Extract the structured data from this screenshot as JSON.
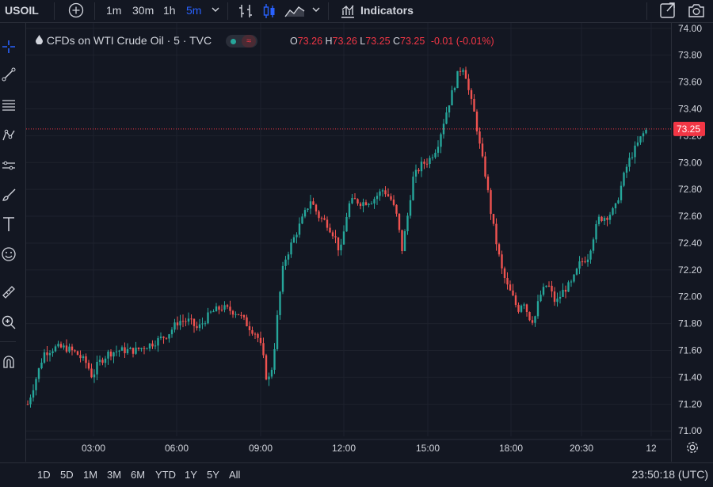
{
  "toolbar": {
    "symbol": "USOIL",
    "intervals": [
      "1m",
      "30m",
      "1h",
      "5m"
    ],
    "active_interval": "5m",
    "indicators_label": "Indicators",
    "colors": {
      "active": "#2962ff",
      "text": "#d1d4dc"
    }
  },
  "sidebar": {
    "icons": [
      "crosshair-icon",
      "trend-line-icon",
      "fib-retracement-icon",
      "pattern-icon",
      "projection-icon",
      "brush-icon",
      "text-icon",
      "emoji-icon",
      "ruler-icon",
      "zoom-in-icon",
      "magnet-icon"
    ]
  },
  "legend": {
    "title": "CFDs on WTI Crude Oil · 5 · TVC",
    "open_label": "O",
    "open": "73.26",
    "high_label": "H",
    "high": "73.26",
    "low_label": "L",
    "low": "73.25",
    "close_label": "C",
    "close": "73.25",
    "change": "-0.01 (-0.01%)"
  },
  "chart_data": {
    "type": "line",
    "title": "CFDs on WTI Crude Oil · 5 · TVC",
    "x_ticks": [
      "03:00",
      "06:00",
      "09:00",
      "12:00",
      "15:00",
      "18:00",
      "20:30",
      "12"
    ],
    "y_ticks": [
      "74.00",
      "73.80",
      "73.60",
      "73.40",
      "73.20",
      "73.00",
      "72.80",
      "72.60",
      "72.40",
      "72.20",
      "72.00",
      "71.80",
      "71.60",
      "71.40",
      "71.20",
      "71.00"
    ],
    "ylim": [
      70.96,
      74.04
    ],
    "last_price": "73.25",
    "series": [
      {
        "values": [
          [
            0,
            71.2
          ],
          [
            0.4,
            71.45
          ],
          [
            0.6,
            71.58
          ],
          [
            1,
            71.62
          ],
          [
            1.4,
            71.62
          ],
          [
            1.8,
            71.58
          ],
          [
            2.2,
            71.5
          ],
          [
            2.4,
            71.4
          ],
          [
            2.6,
            71.5
          ],
          [
            3,
            71.58
          ],
          [
            3.4,
            71.6
          ],
          [
            4,
            71.6
          ],
          [
            4.6,
            71.65
          ],
          [
            5.2,
            71.72
          ],
          [
            5.6,
            71.82
          ],
          [
            6,
            71.82
          ],
          [
            6.3,
            71.76
          ],
          [
            6.8,
            71.88
          ],
          [
            7.2,
            71.92
          ],
          [
            7.8,
            71.88
          ],
          [
            8.2,
            71.78
          ],
          [
            8.5,
            71.72
          ],
          [
            8.7,
            71.6
          ],
          [
            8.9,
            71.35
          ],
          [
            9.1,
            71.5
          ],
          [
            9.3,
            71.92
          ],
          [
            9.5,
            72.25
          ],
          [
            9.8,
            72.4
          ],
          [
            10.2,
            72.58
          ],
          [
            10.5,
            72.72
          ],
          [
            10.8,
            72.6
          ],
          [
            11.1,
            72.55
          ],
          [
            11.4,
            72.45
          ],
          [
            11.6,
            72.32
          ],
          [
            11.9,
            72.68
          ],
          [
            12.1,
            72.72
          ],
          [
            12.4,
            72.7
          ],
          [
            12.8,
            72.72
          ],
          [
            13.2,
            72.8
          ],
          [
            13.5,
            72.72
          ],
          [
            13.7,
            72.6
          ],
          [
            13.9,
            72.35
          ],
          [
            14.1,
            72.6
          ],
          [
            14.3,
            72.88
          ],
          [
            14.6,
            72.98
          ],
          [
            14.9,
            73.02
          ],
          [
            15.2,
            73.12
          ],
          [
            15.5,
            73.35
          ],
          [
            15.8,
            73.55
          ],
          [
            16,
            73.68
          ],
          [
            16.2,
            73.72
          ],
          [
            16.4,
            73.5
          ],
          [
            16.6,
            73.35
          ],
          [
            16.8,
            73.1
          ],
          [
            17,
            72.9
          ],
          [
            17.2,
            72.62
          ],
          [
            17.4,
            72.4
          ],
          [
            17.6,
            72.2
          ],
          [
            17.8,
            72.08
          ],
          [
            18,
            72.0
          ],
          [
            18.2,
            71.9
          ],
          [
            18.4,
            71.98
          ],
          [
            18.6,
            71.85
          ],
          [
            18.8,
            71.82
          ],
          [
            19,
            72.0
          ],
          [
            19.3,
            72.1
          ],
          [
            19.6,
            71.95
          ],
          [
            19.9,
            72.05
          ],
          [
            20.2,
            72.1
          ],
          [
            20.5,
            72.25
          ],
          [
            20.8,
            72.3
          ],
          [
            21,
            72.45
          ],
          [
            21.2,
            72.58
          ],
          [
            21.5,
            72.6
          ],
          [
            21.8,
            72.65
          ],
          [
            22,
            72.8
          ],
          [
            22.2,
            72.95
          ],
          [
            22.4,
            73.05
          ],
          [
            22.6,
            73.12
          ],
          [
            22.8,
            73.2
          ],
          [
            23,
            73.25
          ]
        ]
      }
    ]
  },
  "bottom": {
    "ranges": [
      "1D",
      "5D",
      "1M",
      "3M",
      "6M",
      "YTD",
      "1Y",
      "5Y",
      "All"
    ],
    "clock": "23:50:18 (UTC)"
  },
  "colors": {
    "background": "#131722",
    "up": "#26a69a",
    "down": "#ef5350",
    "grid": "#1e222d",
    "price_tag": "#f23645"
  }
}
